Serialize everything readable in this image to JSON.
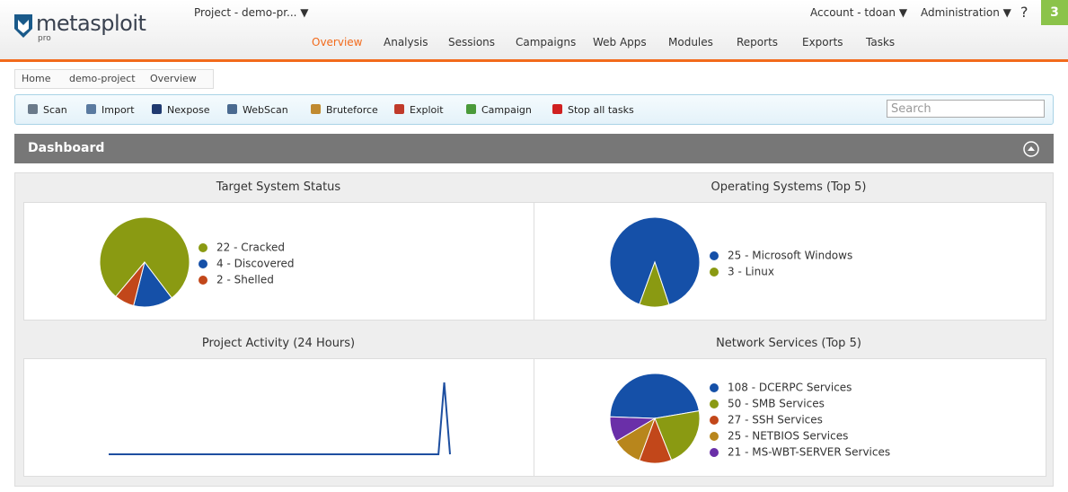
{
  "header": {
    "logo": "metasploit",
    "logo_sub": "pro",
    "project": "Project - demo-pr... ▼",
    "account": "Account - tdoan ▼",
    "administration": "Administration ▼",
    "help": "?",
    "notifications": "3"
  },
  "nav": [
    "Overview",
    "Analysis",
    "Sessions",
    "Campaigns",
    "Web Apps",
    "Modules",
    "Reports",
    "Exports",
    "Tasks"
  ],
  "breadcrumb": [
    "Home",
    "demo-project",
    "Overview"
  ],
  "toolbar": {
    "buttons": [
      "Scan",
      "Import",
      "Nexpose",
      "WebScan",
      "Bruteforce",
      "Exploit",
      "Campaign",
      "Stop all tasks"
    ],
    "search_placeholder": "Search"
  },
  "dashboard": {
    "title": "Dashboard"
  },
  "chart_data": [
    {
      "type": "pie",
      "title": "Target System Status",
      "values": [
        22,
        4,
        2
      ],
      "value_labels": [
        "22 - Cracked",
        "4 - Discovered",
        "2 - Shelled"
      ],
      "colors": [
        "#8a9a12",
        "#1550a8",
        "#c2471a"
      ]
    },
    {
      "type": "pie",
      "title": "Operating Systems (Top 5)",
      "values": [
        25,
        3
      ],
      "value_labels": [
        "25 - Microsoft Windows",
        "3 - Linux"
      ],
      "colors": [
        "#1550a8",
        "#8a9a12"
      ]
    },
    {
      "type": "line",
      "title": "Project Activity (24 Hours)",
      "values": [
        0,
        0,
        0,
        0,
        0,
        0,
        0,
        0,
        0,
        0,
        0,
        0,
        0,
        0,
        0,
        0,
        0,
        0,
        0,
        0,
        0,
        0,
        0,
        0,
        0,
        0,
        0,
        0,
        0,
        0,
        0,
        0,
        0,
        0,
        0,
        0,
        0,
        0,
        0,
        0,
        0,
        0,
        0,
        0,
        0,
        0,
        0,
        0,
        0,
        0,
        0,
        0,
        0,
        0,
        0,
        0,
        0,
        0,
        1,
        0
      ],
      "ylim": [
        0,
        1
      ],
      "color": "#1e4fa0"
    },
    {
      "type": "pie",
      "title": "Network Services (Top 5)",
      "values": [
        108,
        50,
        27,
        25,
        21
      ],
      "value_labels": [
        "108 - DCERPC Services",
        "50 - SMB Services",
        "27 - SSH Services",
        "25 - NETBIOS Services",
        "21 - MS-WBT-SERVER Services"
      ],
      "colors": [
        "#1550a8",
        "#8a9a12",
        "#c2471a",
        "#b8861c",
        "#6a2fa8"
      ]
    }
  ]
}
